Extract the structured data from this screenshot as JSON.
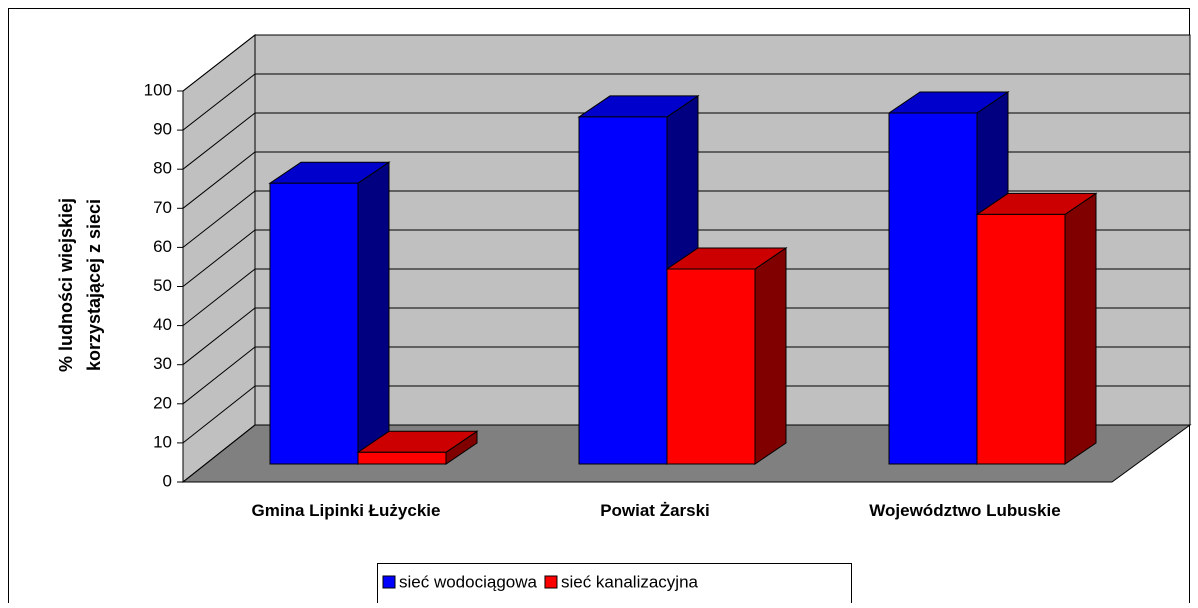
{
  "chart_data": {
    "type": "bar3d",
    "y_label": [
      "% ludności wiejskiej",
      "korzystającej z sieci"
    ],
    "categories": [
      "Gmina Lipinki Łużyckie",
      "Powiat Żarski",
      "Województwo Lubuskie"
    ],
    "series": [
      {
        "name": "sieć wodociągowa",
        "color": "#0000ff",
        "values": [
          72,
          89,
          90
        ]
      },
      {
        "name": "sieć kanalizacyjna",
        "color": "#ff0000",
        "values": [
          3,
          50,
          64
        ]
      }
    ],
    "ylim": [
      0,
      100
    ],
    "yticks": [
      0,
      10,
      20,
      30,
      40,
      50,
      60,
      70,
      80,
      90,
      100
    ],
    "grid": true,
    "legend": "bottom"
  }
}
